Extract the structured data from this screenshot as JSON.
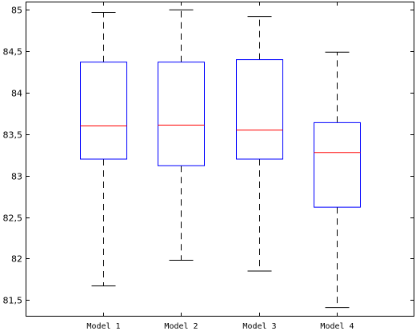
{
  "chart_data": {
    "type": "box",
    "title": "",
    "xlabel": "",
    "ylabel": "",
    "ylim": [
      81.3,
      85.1
    ],
    "yticks": [
      81.5,
      82,
      82.5,
      83,
      83.5,
      84,
      84.5,
      85
    ],
    "ytick_labels": [
      "81,5",
      "82",
      "82,5",
      "83",
      "83,5",
      "84",
      "84,5",
      "85"
    ],
    "grid": false,
    "categories": [
      "Model 1",
      "Model 2",
      "Model 3",
      "Model 4"
    ],
    "boxes": [
      {
        "whisker_low": 81.67,
        "q1": 83.2,
        "median": 83.6,
        "q3": 84.37,
        "whisker_high": 84.97
      },
      {
        "whisker_low": 81.98,
        "q1": 83.12,
        "median": 83.61,
        "q3": 84.37,
        "whisker_high": 85.0
      },
      {
        "whisker_low": 81.85,
        "q1": 83.2,
        "median": 83.55,
        "q3": 84.4,
        "whisker_high": 84.92
      },
      {
        "whisker_low": 81.41,
        "q1": 82.62,
        "median": 83.28,
        "q3": 83.64,
        "whisker_high": 84.49
      }
    ],
    "colors": {
      "box": "#0000ff",
      "median": "#ff0000",
      "whisker": "#000000",
      "axis": "#000000"
    }
  }
}
